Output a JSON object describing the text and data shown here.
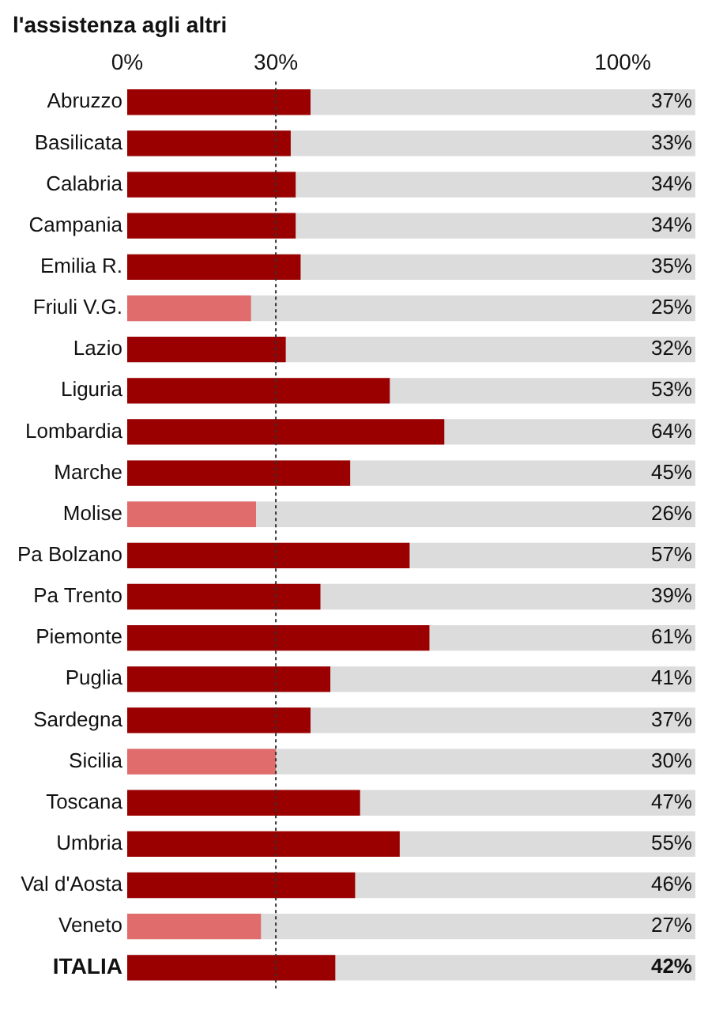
{
  "chart_data": {
    "type": "bar",
    "orientation": "horizontal",
    "title": "l'assistenza agli altri",
    "categories": [
      "Abruzzo",
      "Basilicata",
      "Calabria",
      "Campania",
      "Emilia R.",
      "Friuli V.G.",
      "Lazio",
      "Liguria",
      "Lombardia",
      "Marche",
      "Molise",
      "Pa Bolzano",
      "Pa Trento",
      "Piemonte",
      "Puglia",
      "Sardegna",
      "Sicilia",
      "Toscana",
      "Umbria",
      "Val d'Aosta",
      "Veneto",
      "ITALIA"
    ],
    "values": [
      37,
      33,
      34,
      34,
      35,
      25,
      32,
      53,
      64,
      45,
      26,
      57,
      39,
      61,
      41,
      37,
      30,
      47,
      55,
      46,
      27,
      42
    ],
    "colors": [
      "#9b0000",
      "#9b0000",
      "#9b0000",
      "#9b0000",
      "#9b0000",
      "#e06c6c",
      "#9b0000",
      "#9b0000",
      "#9b0000",
      "#9b0000",
      "#e06c6c",
      "#9b0000",
      "#9b0000",
      "#9b0000",
      "#9b0000",
      "#9b0000",
      "#e06c6c",
      "#9b0000",
      "#9b0000",
      "#9b0000",
      "#e06c6c",
      "#9b0000"
    ],
    "value_labels": [
      "37%",
      "33%",
      "34%",
      "34%",
      "35%",
      "25%",
      "32%",
      "53%",
      "64%",
      "45%",
      "26%",
      "57%",
      "39%",
      "61%",
      "41%",
      "37%",
      "30%",
      "47%",
      "55%",
      "46%",
      "27%",
      "42%"
    ],
    "xlim": [
      0,
      100
    ],
    "xticks": [
      {
        "value": 0,
        "label": "0%"
      },
      {
        "value": 30,
        "label": "30%"
      },
      {
        "value": 100,
        "label": "100%"
      }
    ],
    "ref_lines": [
      {
        "axis": "x",
        "value": 30,
        "color": "#333333",
        "line_style": "dotted"
      }
    ],
    "grid": false,
    "legend": false
  }
}
